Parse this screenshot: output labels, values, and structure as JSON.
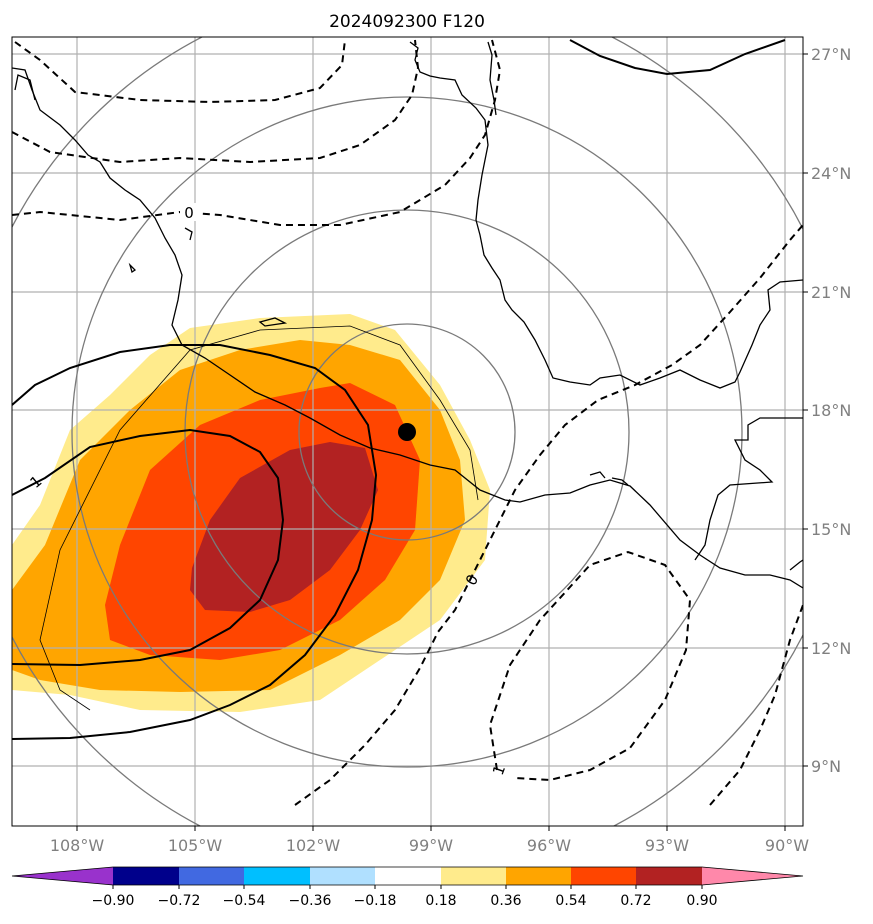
{
  "title": "2024092300 F120",
  "lon_ticks": [
    "108°W",
    "105°W",
    "102°W",
    "99°W",
    "96°W",
    "93°W",
    "90°W"
  ],
  "lat_ticks": [
    "27°N",
    "24°N",
    "21°N",
    "18°N",
    "15°N",
    "12°N",
    "9°N"
  ],
  "contour_labels": {
    "zero_north": "0",
    "zero_south": "0",
    "one_west": "1",
    "one_southeast": "1"
  },
  "colorbar": {
    "labels": [
      "−0.90",
      "−0.72",
      "−0.54",
      "−0.36",
      "−0.18",
      "0.18",
      "0.36",
      "0.54",
      "0.72",
      "0.90"
    ],
    "colors": [
      "#9932cc",
      "#00008b",
      "#4169e1",
      "#00bfff",
      "#b0e0ff",
      "#ffffff",
      "#ffeb8c",
      "#ffa500",
      "#ff4500",
      "#b22222",
      "#ff88aa"
    ]
  },
  "fill_colors": {
    "level_018": "#ffeb8c",
    "level_036": "#ffa500",
    "level_054": "#ff4500",
    "level_072": "#b22222"
  },
  "marker": {
    "label": "storm center",
    "color": "#000000"
  }
}
